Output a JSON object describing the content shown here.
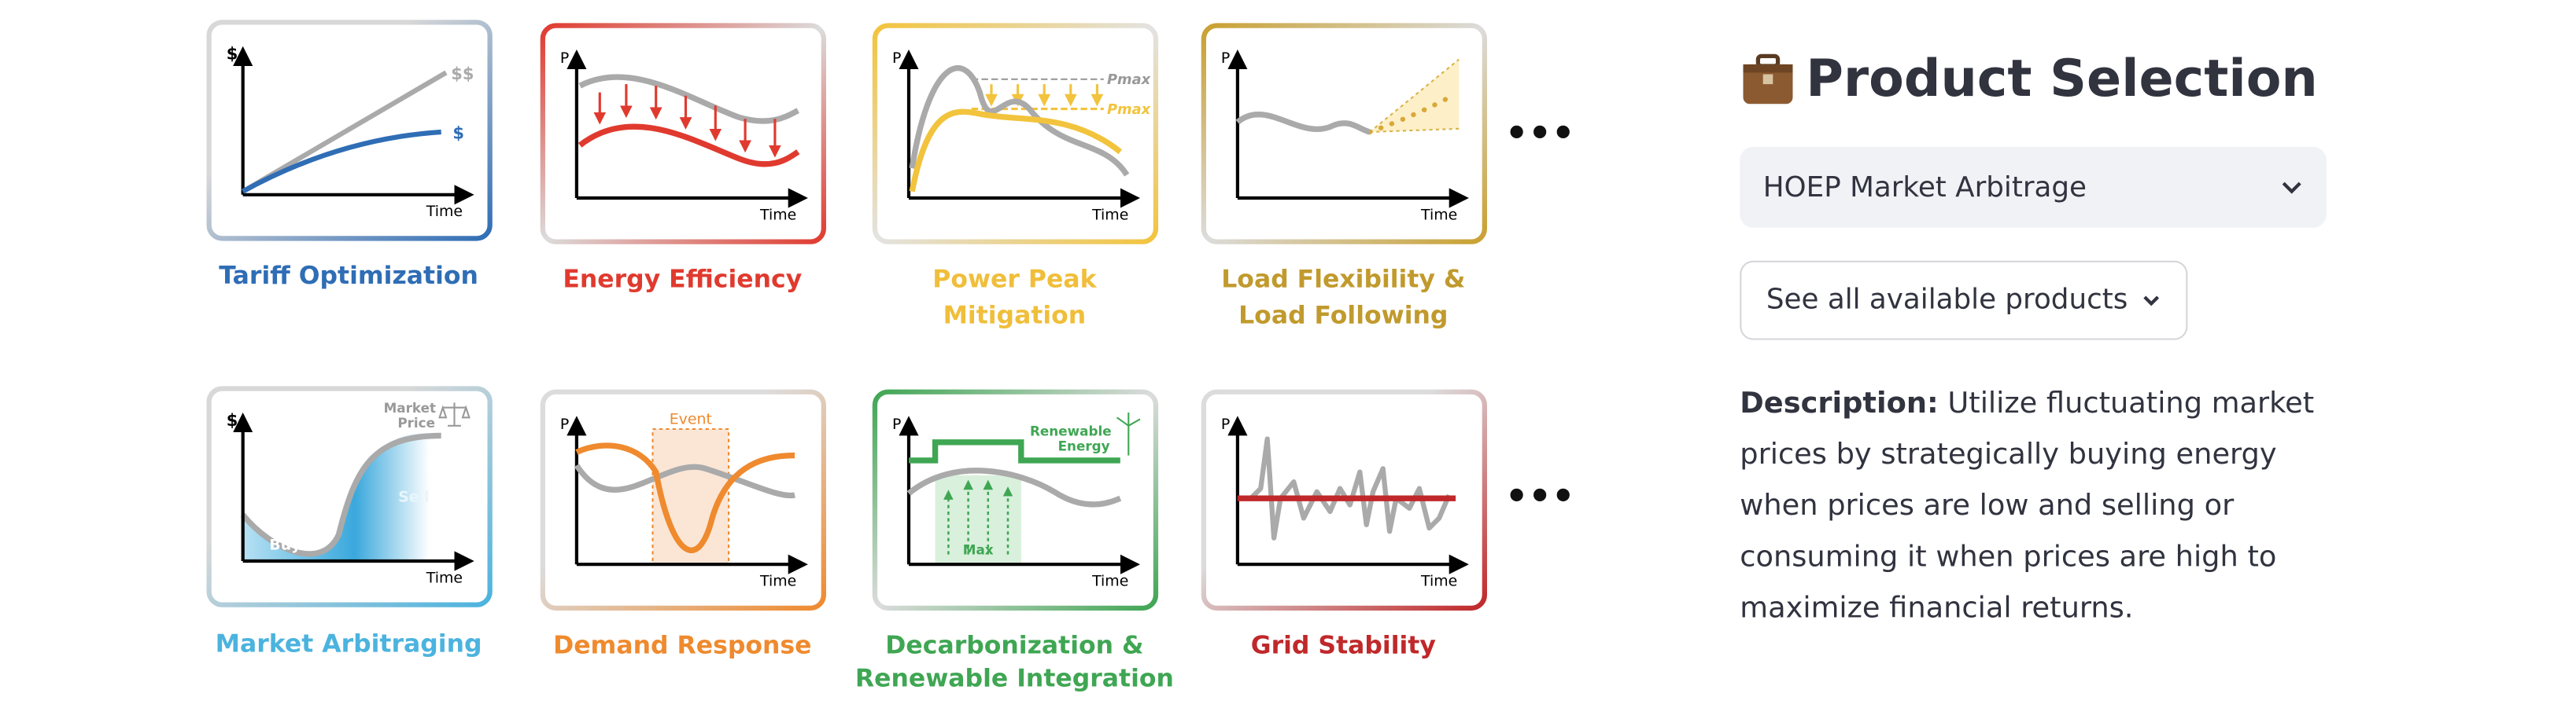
{
  "cards": [
    {
      "title": [
        "Tariff Optimization"
      ],
      "y_axis": "$",
      "x_axis": "Time",
      "notes": [
        "$$",
        "$"
      ]
    },
    {
      "title": [
        "Energy Efficiency"
      ],
      "y_axis": "P",
      "x_axis": "Time",
      "notes": []
    },
    {
      "title": [
        "Power Peak",
        "Mitigation"
      ],
      "y_axis": "P",
      "x_axis": "Time",
      "notes": [
        "Pmax",
        "Pmax"
      ]
    },
    {
      "title": [
        "Load Flexibility &",
        "Load Following"
      ],
      "y_axis": "P",
      "x_axis": "Time",
      "notes": []
    },
    {
      "title": [
        "Market Arbitraging"
      ],
      "y_axis": "$",
      "x_axis": "Time",
      "notes": [
        "Market",
        "Price",
        "Sell",
        "Buy"
      ]
    },
    {
      "title": [
        "Demand Response"
      ],
      "y_axis": "P",
      "x_axis": "Time",
      "notes": [
        "Event"
      ]
    },
    {
      "title": [
        "Decarbonization &",
        "Renewable Integration"
      ],
      "y_axis": "P",
      "x_axis": "Time",
      "notes": [
        "Renewable",
        "Energy",
        "Max"
      ]
    },
    {
      "title": [
        "Grid Stability"
      ],
      "y_axis": "P",
      "x_axis": "Time",
      "notes": []
    }
  ],
  "more_indicator": "•••",
  "sidebar": {
    "title": "Product Selection",
    "select": "HOEP Market Arbitrage",
    "button": "See all available products",
    "description_label": "Description:",
    "description": "Utilize fluctuating market prices by strategically buying energy when prices are low and selling or consuming it when prices are high to maximize financial returns."
  }
}
